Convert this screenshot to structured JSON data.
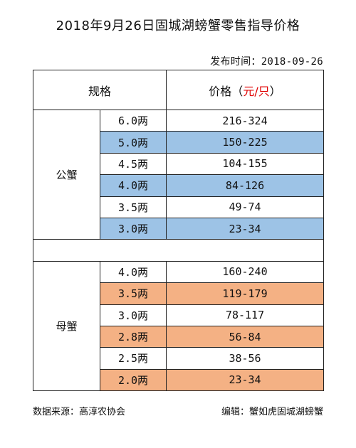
{
  "title": "2018年9月26日固城湖螃蟹零售指导价格",
  "publish": {
    "label": "发布时间：",
    "date": "2018-09-26"
  },
  "table": {
    "header_spec": "规格",
    "header_price_prefix": "价格（",
    "header_price_unit": "元/只",
    "header_price_suffix": "）",
    "male": {
      "label": "公蟹",
      "rows": [
        {
          "size": "6.0两",
          "price": "216-324"
        },
        {
          "size": "5.0两",
          "price": "150-225"
        },
        {
          "size": "4.5两",
          "price": "104-155"
        },
        {
          "size": "4.0两",
          "price": "84-126"
        },
        {
          "size": "3.5两",
          "price": "49-74"
        },
        {
          "size": "3.0两",
          "price": "23-34"
        }
      ]
    },
    "female": {
      "label": "母蟹",
      "rows": [
        {
          "size": "4.0两",
          "price": "160-240"
        },
        {
          "size": "3.5两",
          "price": "119-179"
        },
        {
          "size": "3.0两",
          "price": "78-117"
        },
        {
          "size": "2.8两",
          "price": "56-84"
        },
        {
          "size": "2.5两",
          "price": "38-56"
        },
        {
          "size": "2.0两",
          "price": "23-34"
        }
      ]
    }
  },
  "footer": {
    "source": "数据来源：高淳农协会",
    "editor": "编辑：蟹如虎固城湖螃蟹"
  },
  "colors": {
    "male_highlight": "#9dc3e6",
    "female_highlight": "#f4b184",
    "unit_red": "#e00000"
  }
}
